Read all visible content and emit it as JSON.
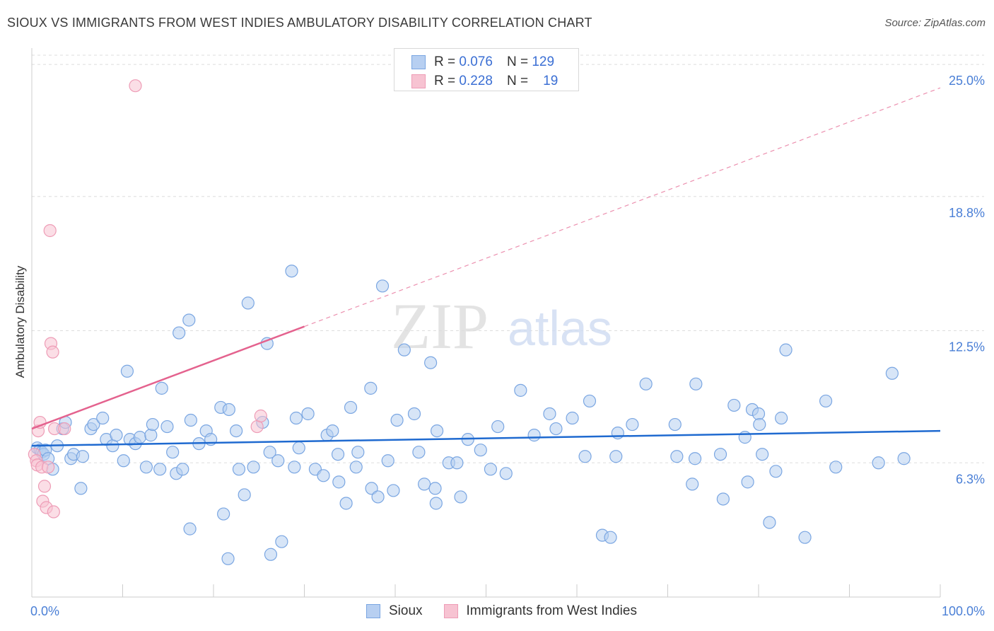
{
  "title": "SIOUX VS IMMIGRANTS FROM WEST INDIES AMBULATORY DISABILITY CORRELATION CHART",
  "source": "Source: ZipAtlas.com",
  "watermark": {
    "zip": "ZIP",
    "atlas": "atlas"
  },
  "colors": {
    "sioux_fill": "#b7cff1",
    "sioux_stroke": "#7aa6e2",
    "sioux_line": "#1f6ad0",
    "wi_fill": "#f7c3d2",
    "wi_stroke": "#ee9cb6",
    "wi_line": "#e4628e",
    "tick_label": "#4a7fd6",
    "grid": "#dddddd"
  },
  "legend_top": {
    "rows": [
      {
        "series": "Sioux",
        "r_label": "R =",
        "r_value": "0.076",
        "n_label": "N =",
        "n_value": "129"
      },
      {
        "series": "Immigrants from West Indies",
        "r_label": "R =",
        "r_value": "0.228",
        "n_label": "N =",
        "n_value": "19"
      }
    ]
  },
  "legend_bottom": [
    "Sioux",
    "Immigrants from West Indies"
  ],
  "chart_data": {
    "type": "scatter",
    "title": "SIOUX VS IMMIGRANTS FROM WEST INDIES AMBULATORY DISABILITY CORRELATION CHART",
    "xlabel": "",
    "ylabel": "Ambulatory Disability",
    "xlim": [
      0,
      100
    ],
    "ylim": [
      0,
      25.7
    ],
    "x_tick_labels": [
      "0.0%",
      "100.0%"
    ],
    "y_ticks": [
      6.3,
      12.5,
      18.8,
      25.0
    ],
    "y_tick_labels": [
      "6.3%",
      "12.5%",
      "18.8%",
      "25.0%"
    ],
    "grid": true,
    "legend_position": "top-center",
    "series": [
      {
        "name": "Sioux",
        "trend": {
          "x": [
            0,
            100
          ],
          "y": [
            7.1,
            7.8
          ],
          "dashed_extension": false
        },
        "points": [
          [
            0.6,
            7.0
          ],
          [
            0.9,
            6.9
          ],
          [
            1.1,
            6.8
          ],
          [
            1.3,
            6.7
          ],
          [
            1.5,
            6.9
          ],
          [
            1.8,
            6.5
          ],
          [
            2.3,
            6.0
          ],
          [
            2.8,
            7.1
          ],
          [
            3.4,
            7.9
          ],
          [
            3.7,
            8.2
          ],
          [
            4.3,
            6.5
          ],
          [
            4.6,
            6.7
          ],
          [
            5.4,
            5.1
          ],
          [
            5.6,
            6.6
          ],
          [
            6.5,
            7.9
          ],
          [
            6.8,
            8.1
          ],
          [
            7.8,
            8.4
          ],
          [
            8.2,
            7.4
          ],
          [
            8.9,
            7.1
          ],
          [
            9.3,
            7.6
          ],
          [
            10.1,
            6.4
          ],
          [
            10.5,
            10.6
          ],
          [
            10.8,
            7.4
          ],
          [
            11.4,
            7.2
          ],
          [
            11.9,
            7.5
          ],
          [
            12.6,
            6.1
          ],
          [
            13.1,
            7.6
          ],
          [
            13.3,
            8.1
          ],
          [
            14.1,
            6.0
          ],
          [
            14.3,
            9.8
          ],
          [
            14.9,
            8.0
          ],
          [
            15.5,
            6.8
          ],
          [
            15.9,
            5.8
          ],
          [
            16.2,
            12.4
          ],
          [
            16.6,
            6.0
          ],
          [
            17.3,
            13.0
          ],
          [
            17.4,
            3.2
          ],
          [
            17.5,
            8.3
          ],
          [
            18.4,
            7.2
          ],
          [
            19.2,
            7.8
          ],
          [
            19.7,
            7.4
          ],
          [
            20.8,
            8.9
          ],
          [
            21.1,
            3.9
          ],
          [
            21.6,
            1.8
          ],
          [
            21.7,
            8.8
          ],
          [
            22.5,
            7.8
          ],
          [
            22.8,
            6.0
          ],
          [
            23.4,
            4.8
          ],
          [
            23.8,
            13.8
          ],
          [
            24.4,
            6.1
          ],
          [
            25.4,
            8.2
          ],
          [
            25.9,
            11.9
          ],
          [
            26.2,
            6.8
          ],
          [
            26.3,
            2.0
          ],
          [
            27.1,
            6.4
          ],
          [
            27.5,
            2.6
          ],
          [
            28.6,
            15.3
          ],
          [
            28.9,
            6.1
          ],
          [
            29.1,
            8.4
          ],
          [
            29.4,
            7.0
          ],
          [
            30.4,
            8.6
          ],
          [
            31.2,
            6.0
          ],
          [
            32.1,
            5.7
          ],
          [
            32.5,
            7.6
          ],
          [
            33.1,
            7.8
          ],
          [
            33.7,
            6.7
          ],
          [
            33.8,
            5.4
          ],
          [
            34.6,
            4.4
          ],
          [
            35.1,
            8.9
          ],
          [
            35.7,
            6.1
          ],
          [
            35.9,
            6.8
          ],
          [
            37.3,
            9.8
          ],
          [
            37.4,
            5.1
          ],
          [
            38.1,
            4.7
          ],
          [
            38.6,
            14.6
          ],
          [
            39.2,
            6.4
          ],
          [
            39.8,
            5.0
          ],
          [
            40.2,
            8.3
          ],
          [
            41.0,
            11.6
          ],
          [
            42.1,
            8.6
          ],
          [
            42.6,
            6.8
          ],
          [
            43.2,
            5.3
          ],
          [
            43.9,
            11.0
          ],
          [
            44.4,
            5.1
          ],
          [
            44.5,
            4.4
          ],
          [
            44.6,
            7.8
          ],
          [
            45.9,
            6.3
          ],
          [
            46.8,
            6.3
          ],
          [
            47.2,
            4.7
          ],
          [
            48.0,
            7.4
          ],
          [
            49.4,
            6.9
          ],
          [
            50.5,
            6.0
          ],
          [
            51.3,
            8.0
          ],
          [
            52.2,
            5.8
          ],
          [
            53.8,
            9.7
          ],
          [
            55.3,
            7.6
          ],
          [
            57.0,
            8.6
          ],
          [
            57.7,
            7.9
          ],
          [
            59.5,
            8.4
          ],
          [
            60.9,
            6.6
          ],
          [
            61.4,
            9.2
          ],
          [
            62.8,
            2.9
          ],
          [
            63.7,
            2.8
          ],
          [
            64.3,
            6.6
          ],
          [
            64.5,
            7.7
          ],
          [
            66.1,
            8.1
          ],
          [
            67.6,
            10.0
          ],
          [
            70.8,
            8.1
          ],
          [
            71.0,
            6.6
          ],
          [
            72.7,
            5.3
          ],
          [
            73.0,
            6.5
          ],
          [
            73.1,
            10.0
          ],
          [
            75.8,
            6.7
          ],
          [
            76.1,
            4.6
          ],
          [
            77.3,
            9.0
          ],
          [
            78.5,
            7.5
          ],
          [
            78.8,
            5.4
          ],
          [
            79.3,
            8.8
          ],
          [
            80.0,
            8.6
          ],
          [
            80.1,
            8.1
          ],
          [
            80.4,
            6.7
          ],
          [
            81.2,
            3.5
          ],
          [
            81.9,
            5.9
          ],
          [
            82.5,
            8.4
          ],
          [
            83.0,
            11.6
          ],
          [
            85.1,
            2.8
          ],
          [
            87.4,
            9.2
          ],
          [
            88.5,
            6.1
          ],
          [
            93.2,
            6.3
          ],
          [
            94.7,
            10.5
          ],
          [
            96.0,
            6.5
          ]
        ]
      },
      {
        "name": "Immigrants from West Indies",
        "trend": {
          "x": [
            0,
            100
          ],
          "y": [
            7.9,
            23.9
          ],
          "solid_until_x": 30,
          "dashed_extension": true
        },
        "points": [
          [
            0.3,
            6.7
          ],
          [
            0.5,
            6.4
          ],
          [
            0.6,
            6.2
          ],
          [
            0.7,
            7.8
          ],
          [
            0.9,
            8.2
          ],
          [
            1.1,
            6.1
          ],
          [
            1.2,
            4.5
          ],
          [
            1.4,
            5.2
          ],
          [
            1.6,
            4.2
          ],
          [
            1.8,
            6.1
          ],
          [
            2.0,
            17.2
          ],
          [
            2.1,
            11.9
          ],
          [
            2.3,
            11.5
          ],
          [
            2.4,
            4.0
          ],
          [
            2.5,
            7.9
          ],
          [
            3.6,
            7.9
          ],
          [
            11.4,
            24.0
          ],
          [
            24.8,
            8.0
          ],
          [
            25.2,
            8.5
          ]
        ]
      }
    ]
  }
}
